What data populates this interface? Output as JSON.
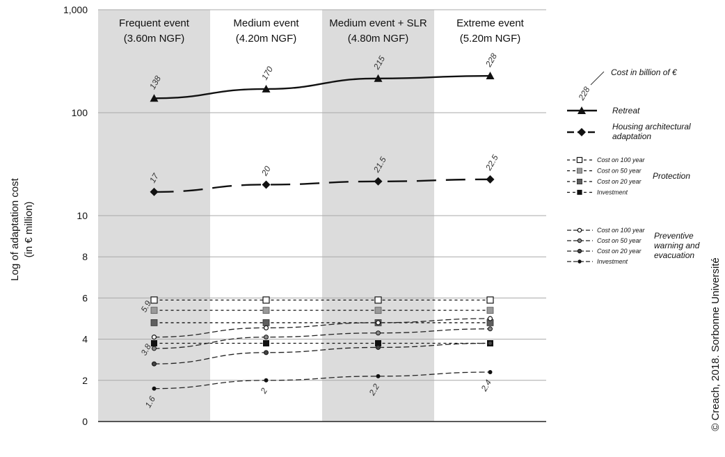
{
  "chart_data": {
    "type": "line",
    "ylabel": [
      "Log of adaptation cost",
      "(in € million)"
    ],
    "yticks": [
      {
        "value": 0,
        "label": "0"
      },
      {
        "value": 2,
        "label": "2"
      },
      {
        "value": 4,
        "label": "4"
      },
      {
        "value": 6,
        "label": "6"
      },
      {
        "value": 8,
        "label": "8"
      },
      {
        "value": 10,
        "label": "10"
      },
      {
        "value": 100,
        "label": "100"
      },
      {
        "value": 1000,
        "label": "1,000"
      }
    ],
    "categories": [
      {
        "title": "Frequent event",
        "sub": "(3.60m NGF)",
        "shaded": true
      },
      {
        "title": "Medium event",
        "sub": "(4.20m NGF)",
        "shaded": false
      },
      {
        "title": "Medium event + SLR",
        "sub": "(4.80m NGF)",
        "shaded": true
      },
      {
        "title": "Extreme event",
        "sub": "(5.20m NGF)",
        "shaded": false
      }
    ],
    "series": [
      {
        "name": "Retreat",
        "group": "main",
        "marker": "triangle",
        "line": "solid",
        "values": [
          138,
          170,
          215,
          228
        ],
        "labels": [
          "138",
          "170",
          "215",
          "228"
        ]
      },
      {
        "name": "Housing architectural adaptation",
        "group": "main",
        "marker": "diamond",
        "line": "dashed",
        "values": [
          17,
          20,
          21.5,
          22.5
        ],
        "labels": [
          "17",
          "20",
          "21.5",
          "22.5"
        ]
      },
      {
        "name": "Cost on 100 year",
        "group": "protection",
        "marker": "square-open",
        "line": "dotted",
        "values": [
          5.9,
          5.9,
          5.9,
          5.9
        ],
        "labels": [
          "5.9",
          "",
          "",
          ""
        ]
      },
      {
        "name": "Cost on 50 year",
        "group": "protection",
        "marker": "square-light",
        "line": "dotted",
        "values": [
          5.4,
          5.4,
          5.4,
          5.4
        ],
        "labels": [
          "",
          "",
          "",
          ""
        ]
      },
      {
        "name": "Cost on 20 year",
        "group": "protection",
        "marker": "square-mid",
        "line": "dotted",
        "values": [
          4.8,
          4.8,
          4.8,
          4.8
        ],
        "labels": [
          "",
          "",
          "",
          ""
        ]
      },
      {
        "name": "Investment",
        "group": "protection",
        "marker": "square-dark",
        "line": "dotted",
        "values": [
          3.8,
          3.8,
          3.8,
          3.8
        ],
        "labels": [
          "3.8",
          "",
          "",
          ""
        ]
      },
      {
        "name": "Cost on 100 year",
        "group": "preventive",
        "marker": "circle-open",
        "line": "dashed-thin",
        "values": [
          4.1,
          4.55,
          4.8,
          5.0
        ],
        "labels": [
          "",
          "",
          "",
          ""
        ]
      },
      {
        "name": "Cost on 50 year",
        "group": "preventive",
        "marker": "circle-light",
        "line": "dashed-thin",
        "values": [
          3.55,
          4.1,
          4.3,
          4.5
        ],
        "labels": [
          "",
          "",
          "",
          ""
        ]
      },
      {
        "name": "Cost on 20 year",
        "group": "preventive",
        "marker": "circle-mid",
        "line": "dashed-thin",
        "values": [
          2.8,
          3.35,
          3.6,
          3.8
        ],
        "labels": [
          "",
          "",
          "",
          ""
        ]
      },
      {
        "name": "Investment",
        "group": "preventive",
        "marker": "circle-dark",
        "line": "dashed-thin",
        "values": [
          1.6,
          2.0,
          2.2,
          2.4
        ],
        "labels": [
          "1.6",
          "2",
          "2.2",
          "2.4"
        ]
      }
    ],
    "legend": {
      "placement": "right",
      "cost_label": "Cost in billion of €",
      "cost_example": "228",
      "main": [
        "Retreat",
        "Housing architectural adaptation"
      ],
      "protection_title": "Protection",
      "protection_items": [
        "Cost on 100 year",
        "Cost on 50 year",
        "Cost on 20 year",
        "Investment"
      ],
      "preventive_title": [
        "Preventive",
        "warning and",
        "evacuation"
      ],
      "preventive_items": [
        "Cost on 100 year",
        "Cost on 50 year",
        "Cost on 20 year",
        "Investment"
      ]
    },
    "grid": true,
    "colors": {
      "shade": "#dcdcdc",
      "grid": "#a8a8a8",
      "ink": "#111111",
      "sq_light": "#9a9a9a",
      "sq_mid": "#5e5e5e"
    }
  },
  "credit": "© Creach, 2018. Sorbonne Université"
}
